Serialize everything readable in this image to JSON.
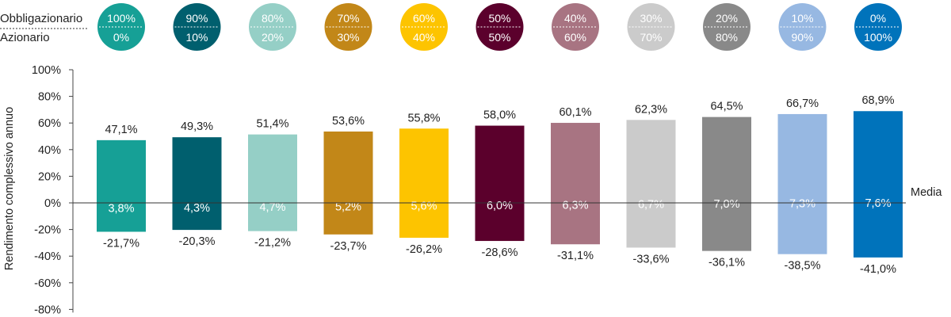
{
  "header": {
    "row_top_label": "Obbligazionario",
    "row_bottom_label": "Azionario"
  },
  "chart_data": {
    "type": "bar",
    "subtype": "floating-range",
    "ylabel": "Rendimento complessivo annuo",
    "ylim": [
      -80,
      100
    ],
    "yticks": [
      "100%",
      "80%",
      "60%",
      "40%",
      "20%",
      "0%",
      "-20%",
      "-40%",
      "-60%",
      "-80%"
    ],
    "zero_line_label": "Media",
    "portfolios": [
      {
        "bond": "100%",
        "equity": "0%",
        "color": "#16a096",
        "max": 47.1,
        "min": -21.7,
        "mean": 3.8,
        "max_label": "47,1%",
        "min_label": "-21,7%",
        "mean_label": "3,8%"
      },
      {
        "bond": "90%",
        "equity": "10%",
        "color": "#005f6e",
        "max": 49.3,
        "min": -20.3,
        "mean": 4.3,
        "max_label": "49,3%",
        "min_label": "-20,3%",
        "mean_label": "4,3%"
      },
      {
        "bond": "80%",
        "equity": "20%",
        "color": "#95cfc6",
        "max": 51.4,
        "min": -21.2,
        "mean": 4.7,
        "max_label": "51,4%",
        "min_label": "-21,2%",
        "mean_label": "4,7%"
      },
      {
        "bond": "70%",
        "equity": "30%",
        "color": "#c28718",
        "max": 53.6,
        "min": -23.7,
        "mean": 5.2,
        "max_label": "53,6%",
        "min_label": "-23,7%",
        "mean_label": "5,2%"
      },
      {
        "bond": "60%",
        "equity": "40%",
        "color": "#fdc400",
        "max": 55.8,
        "min": -26.2,
        "mean": 5.6,
        "max_label": "55,8%",
        "min_label": "-26,2%",
        "mean_label": "5,6%"
      },
      {
        "bond": "50%",
        "equity": "50%",
        "color": "#5b002c",
        "max": 58.0,
        "min": -28.6,
        "mean": 6.0,
        "max_label": "58,0%",
        "min_label": "-28,6%",
        "mean_label": "6,0%"
      },
      {
        "bond": "40%",
        "equity": "60%",
        "color": "#a87482",
        "max": 60.1,
        "min": -31.1,
        "mean": 6.3,
        "max_label": "60,1%",
        "min_label": "-31,1%",
        "mean_label": "6,3%"
      },
      {
        "bond": "30%",
        "equity": "70%",
        "color": "#cbcbcb",
        "max": 62.3,
        "min": -33.6,
        "mean": 6.7,
        "max_label": "62,3%",
        "min_label": "-33,6%",
        "mean_label": "6,7%"
      },
      {
        "bond": "20%",
        "equity": "80%",
        "color": "#898989",
        "max": 64.5,
        "min": -36.1,
        "mean": 7.0,
        "max_label": "64,5%",
        "min_label": "-36,1%",
        "mean_label": "7,0%"
      },
      {
        "bond": "10%",
        "equity": "90%",
        "color": "#97b8e2",
        "max": 66.7,
        "min": -38.5,
        "mean": 7.3,
        "max_label": "66,7%",
        "min_label": "-38,5%",
        "mean_label": "7,3%"
      },
      {
        "bond": "0%",
        "equity": "100%",
        "color": "#0073bb",
        "max": 68.9,
        "min": -41.0,
        "mean": 7.6,
        "max_label": "68,9%",
        "min_label": "-41,0%",
        "mean_label": "7,6%"
      }
    ]
  }
}
